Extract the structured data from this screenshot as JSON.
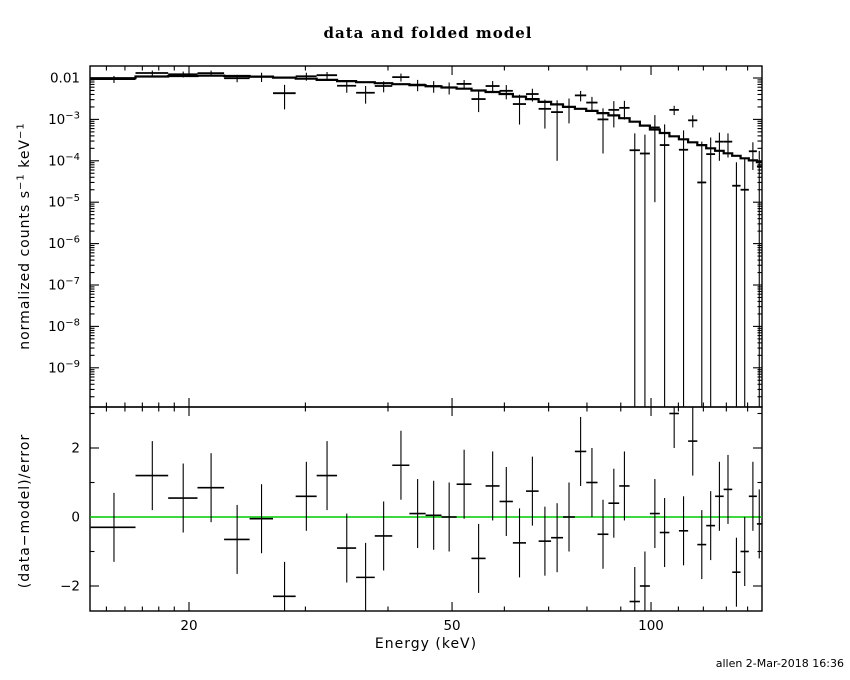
{
  "title": "data and folded model",
  "footer": "allen  2-Mar-2018 16:36",
  "colors": {
    "foreground": "#000000",
    "background": "#ffffff",
    "zero_line_green": "#00cc00"
  },
  "chart_data": {
    "type": "scatter",
    "subtype": "xspec-spectrum-with-residuals",
    "title": "data and folded model",
    "xlabel": "Energy (keV)",
    "ylabel_top": "normalized counts s^-1 keV^-1",
    "ylabel_bottom": "(data-model)/error",
    "x_scale": "log",
    "xlim": [
      14.2,
      147
    ],
    "y_scale_top": "log",
    "ylim_top": [
      1.15e-10,
      0.0195
    ],
    "y_scale_bottom": "linear",
    "ylim_bottom": [
      -2.78,
      3.19
    ],
    "legend": "none",
    "grid": "off",
    "residual_err": 1.0,
    "x_axis": {
      "major": [
        {
          "v": 20,
          "label": "20"
        },
        {
          "v": 50,
          "label": "50"
        },
        {
          "v": 100,
          "label": "100"
        }
      ],
      "minor": [
        15,
        16,
        17,
        18,
        19,
        30,
        40,
        60,
        70,
        80,
        90,
        110,
        120,
        130,
        140
      ]
    },
    "y_axis_top": {
      "ticks": [
        {
          "v": 0.01,
          "base": "0.01",
          "sup": ""
        },
        {
          "v": 0.001,
          "base": "10",
          "sup": "−3"
        },
        {
          "v": 0.0001,
          "base": "10",
          "sup": "−4"
        },
        {
          "v": 1e-05,
          "base": "10",
          "sup": "−5"
        },
        {
          "v": 1e-06,
          "base": "10",
          "sup": "−6"
        },
        {
          "v": 1e-07,
          "base": "10",
          "sup": "−7"
        },
        {
          "v": 1e-08,
          "base": "10",
          "sup": "−8"
        },
        {
          "v": 1e-09,
          "base": "10",
          "sup": "−9"
        }
      ]
    },
    "y_axis_bottom": {
      "ticks": [
        {
          "v": 2,
          "label": "2"
        },
        {
          "v": 0,
          "label": "0"
        },
        {
          "v": -2,
          "label": "−2"
        }
      ],
      "minor": [
        3,
        1,
        -1
      ]
    },
    "ylabel_top_parts": [
      [
        "normalized counts s",
        "−1"
      ],
      [
        " keV",
        "−1"
      ]
    ],
    "ylabel_bottom_parts": [
      [
        "(data−model)/error",
        ""
      ]
    ],
    "series": [
      {
        "name": "data",
        "style": "cross-error-bars",
        "color": "#000000"
      },
      {
        "name": "folded model",
        "style": "step-histogram",
        "color": "#000000"
      },
      {
        "name": "residuals",
        "style": "cross-error-bars",
        "color": "#000000"
      }
    ],
    "points": [
      {
        "e": 15.4,
        "w": 2.4,
        "rate": 0.0094,
        "err": 0.0018,
        "model": 0.0099,
        "resid": -0.3
      },
      {
        "e": 17.6,
        "w": 2.0,
        "rate": 0.0132,
        "err": 0.00195,
        "model": 0.0109,
        "resid": 1.2
      },
      {
        "e": 19.6,
        "w": 2.0,
        "rate": 0.0123,
        "err": 0.002,
        "model": 0.0112,
        "resid": 0.55
      },
      {
        "e": 21.6,
        "w": 2.0,
        "rate": 0.0131,
        "err": 0.002,
        "model": 0.0114,
        "resid": 0.85
      },
      {
        "e": 23.65,
        "w": 2.1,
        "rate": 0.0099,
        "err": 0.002,
        "model": 0.0112,
        "resid": -0.65
      },
      {
        "e": 25.75,
        "w": 2.1,
        "rate": 0.0107,
        "err": 0.0027,
        "model": 0.0108,
        "resid": -0.05
      },
      {
        "e": 27.9,
        "w": 2.2,
        "rate": 0.0043,
        "err": 0.00255,
        "model": 0.0102,
        "resid": -2.3
      },
      {
        "e": 30.1,
        "w": 2.2,
        "rate": 0.011,
        "err": 0.0024,
        "model": 0.0096,
        "resid": 0.6
      },
      {
        "e": 32.35,
        "w": 2.3,
        "rate": 0.0117,
        "err": 0.00225,
        "model": 0.009,
        "resid": 1.2
      },
      {
        "e": 34.65,
        "w": 2.3,
        "rate": 0.0065,
        "err": 0.0021,
        "model": 0.0084,
        "resid": -0.9
      },
      {
        "e": 37.0,
        "w": 2.4,
        "rate": 0.0044,
        "err": 0.002,
        "model": 0.0079,
        "resid": -1.75
      },
      {
        "e": 39.4,
        "w": 2.4,
        "rate": 0.0064,
        "err": 0.0019,
        "model": 0.0075,
        "resid": -0.55
      },
      {
        "e": 41.85,
        "w": 2.5,
        "rate": 0.0105,
        "err": 0.0023,
        "model": 0.0071,
        "resid": 1.5
      },
      {
        "e": 44.35,
        "w": 2.5,
        "rate": 0.0069,
        "err": 0.0021,
        "model": 0.0067,
        "resid": 0.1
      },
      {
        "e": 46.9,
        "w": 2.6,
        "rate": 0.0064,
        "err": 0.002,
        "model": 0.0063,
        "resid": 0.05
      },
      {
        "e": 49.5,
        "w": 2.6,
        "rate": 0.0059,
        "err": 0.0019,
        "model": 0.0059,
        "resid": 0.0
      },
      {
        "e": 52.15,
        "w": 2.7,
        "rate": 0.0072,
        "err": 0.00175,
        "model": 0.0055,
        "resid": 0.95
      },
      {
        "e": 54.85,
        "w": 2.7,
        "rate": 0.0031,
        "err": 0.0016,
        "model": 0.005,
        "resid": -1.2
      },
      {
        "e": 57.6,
        "w": 2.8,
        "rate": 0.0064,
        "err": 0.00205,
        "model": 0.0046,
        "resid": 0.9
      },
      {
        "e": 60.4,
        "w": 2.8,
        "rate": 0.0049,
        "err": 0.00185,
        "model": 0.0041,
        "resid": 0.45
      },
      {
        "e": 63.25,
        "w": 2.9,
        "rate": 0.00235,
        "err": 0.0016,
        "model": 0.00355,
        "resid": -0.75
      },
      {
        "e": 66.15,
        "w": 2.9,
        "rate": 0.0041,
        "err": 0.0014,
        "model": 0.0031,
        "resid": 0.75
      },
      {
        "e": 69.1,
        "w": 3.0,
        "rate": 0.0018,
        "err": 0.0012,
        "model": 0.00265,
        "resid": -0.7
      },
      {
        "e": 72.1,
        "w": 3.0,
        "rate": 0.0015,
        "err": 0.0014,
        "model": 0.0023,
        "resid": -0.6
      },
      {
        "e": 75.15,
        "w": 3.1,
        "rate": 0.002,
        "err": 0.0012,
        "model": 0.002,
        "resid": 0.0
      },
      {
        "e": 78.25,
        "w": 3.1,
        "rate": 0.0038,
        "err": 0.00107,
        "model": 0.0018,
        "resid": 1.9
      },
      {
        "e": 81.4,
        "w": 3.2,
        "rate": 0.00255,
        "err": 0.00095,
        "model": 0.0016,
        "resid": 1.0
      },
      {
        "e": 84.6,
        "w": 3.2,
        "rate": 0.001,
        "err": 0.00085,
        "model": 0.00142,
        "resid": -0.5
      },
      {
        "e": 87.85,
        "w": 3.3,
        "rate": 0.0017,
        "err": 0.00106,
        "model": 0.00125,
        "resid": 0.4
      },
      {
        "e": 91.15,
        "w": 3.3,
        "rate": 0.0019,
        "err": 0.00091,
        "model": 0.00107,
        "resid": 0.9
      },
      {
        "e": 94.5,
        "w": 3.4,
        "rate": 0.00018,
        "err": 0.00028,
        "model": 0.00088,
        "resid": -2.45
      },
      {
        "e": 97.9,
        "w": 3.4,
        "rate": 0.00015,
        "err": 0.00028,
        "model": 0.00071,
        "resid": -2.0
      },
      {
        "e": 101.35,
        "w": 3.5,
        "rate": 0.00064,
        "err": 0.00063,
        "model": 0.00057,
        "resid": 0.1
      },
      {
        "e": 104.85,
        "w": 3.5,
        "rate": 0.00024,
        "err": 0.00052,
        "model": 0.00047,
        "resid": -0.45
      },
      {
        "e": 108.4,
        "w": 3.6,
        "rate": 0.0017,
        "err": 0.00043,
        "model": 0.00039,
        "resid": 3.0
      },
      {
        "e": 112.0,
        "w": 3.6,
        "rate": 0.000185,
        "err": 0.00036,
        "model": 0.00033,
        "resid": -0.4
      },
      {
        "e": 115.65,
        "w": 3.7,
        "rate": 0.00095,
        "err": 0.00031,
        "model": 0.00028,
        "resid": 2.2
      },
      {
        "e": 119.35,
        "w": 3.7,
        "rate": 3e-05,
        "err": 0.00026,
        "model": 0.00024,
        "resid": -0.8
      },
      {
        "e": 123.1,
        "w": 3.8,
        "rate": 0.000145,
        "err": 0.00022,
        "model": 0.0002,
        "resid": -0.25
      },
      {
        "e": 126.9,
        "w": 3.8,
        "rate": 0.00029,
        "err": 0.00019,
        "model": 0.000174,
        "resid": 0.6
      },
      {
        "e": 130.75,
        "w": 3.9,
        "rate": 0.00029,
        "err": 0.00017,
        "model": 0.000152,
        "resid": 0.8
      },
      {
        "e": 134.65,
        "w": 3.9,
        "rate": 2.5e-05,
        "err": 6.7e-05,
        "model": 0.000132,
        "resid": -1.6
      },
      {
        "e": 138.6,
        "w": 4.0,
        "rate": 2e-05,
        "err": 9.5e-05,
        "model": 0.000115,
        "resid": -1.0
      },
      {
        "e": 142.6,
        "w": 4.0,
        "rate": 0.00017,
        "err": 0.00011,
        "model": 0.000102,
        "resid": 0.6
      },
      {
        "e": 145.8,
        "w": 2.4,
        "rate": 7.3e-05,
        "err": 0.0001,
        "model": 9.3e-05,
        "resid": -0.2
      }
    ]
  }
}
